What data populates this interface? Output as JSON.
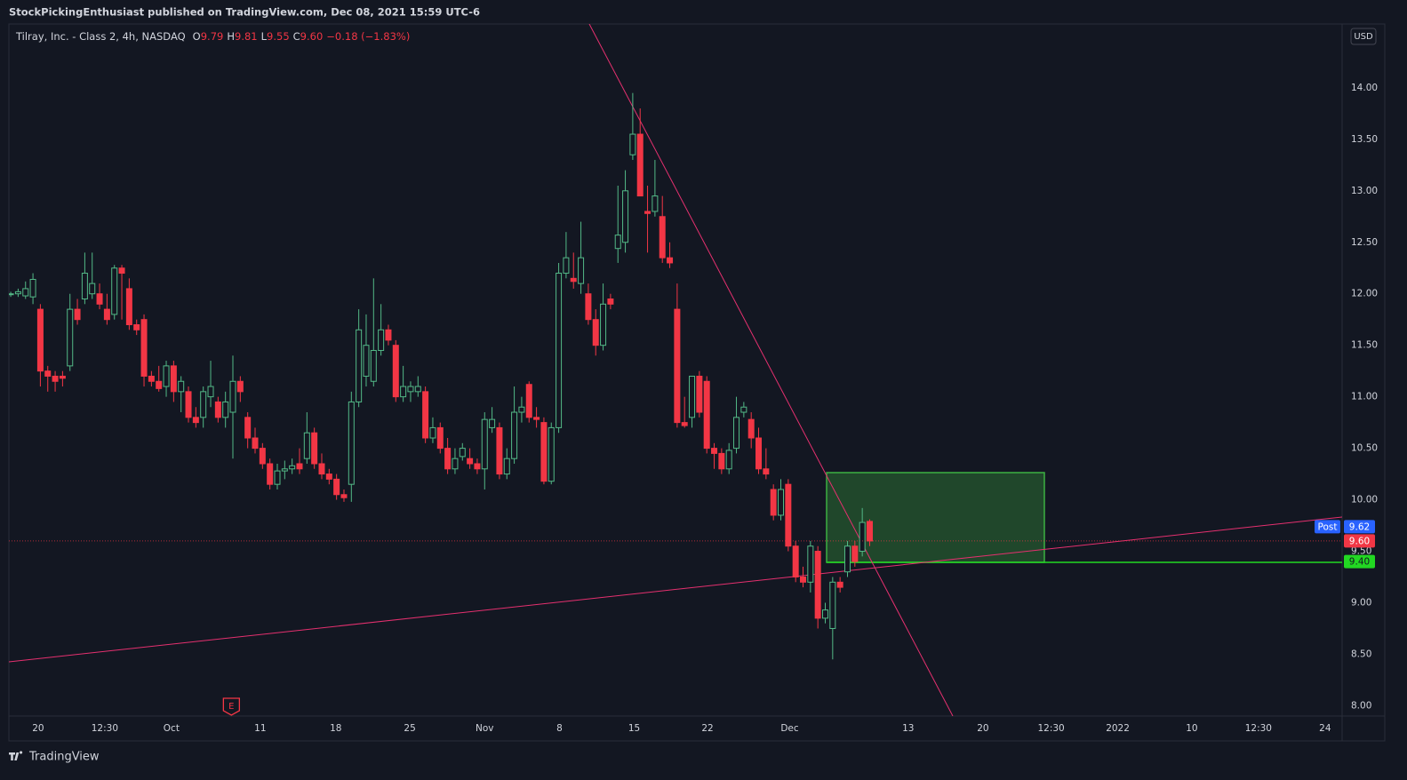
{
  "header": "StockPickingEnthusiast published on TradingView.com, Dec 08, 2021 15:59 UTC-6",
  "footer": "TradingView",
  "chart_data": {
    "type": "candlestick",
    "title": "Tilray, Inc. - Class 2, 4h, NASDAQ",
    "legend_values": [
      {
        "key": "O",
        "value": 9.79
      },
      {
        "key": "H",
        "value": 9.81
      },
      {
        "key": "L",
        "value": 9.55
      },
      {
        "key": "C",
        "value": 9.6,
        "label": "9.60"
      }
    ],
    "change": "−0.18 (−1.83%)",
    "currency": "USD",
    "up_color": "#53b987",
    "down_color": "#f23645",
    "ohlc": [
      [
        12.0,
        12.02,
        11.97,
        12.0
      ],
      [
        12.0,
        12.05,
        11.97,
        12.02
      ],
      [
        11.98,
        12.12,
        11.95,
        12.05
      ],
      [
        11.97,
        12.2,
        11.9,
        12.14
      ],
      [
        11.85,
        11.9,
        11.1,
        11.25
      ],
      [
        11.25,
        11.3,
        11.05,
        11.2
      ],
      [
        11.2,
        11.25,
        11.05,
        11.15
      ],
      [
        11.2,
        11.25,
        11.1,
        11.18
      ],
      [
        11.3,
        12.0,
        11.25,
        11.85
      ],
      [
        11.85,
        11.95,
        11.7,
        11.75
      ],
      [
        11.95,
        12.4,
        11.9,
        12.2
      ],
      [
        12.0,
        12.4,
        11.95,
        12.1
      ],
      [
        12.0,
        12.1,
        11.85,
        11.9
      ],
      [
        11.85,
        12.0,
        11.7,
        11.75
      ],
      [
        11.8,
        12.28,
        11.75,
        12.25
      ],
      [
        12.25,
        12.28,
        11.75,
        12.2
      ],
      [
        12.05,
        12.15,
        11.65,
        11.7
      ],
      [
        11.7,
        11.75,
        11.6,
        11.65
      ],
      [
        11.75,
        11.8,
        11.1,
        11.2
      ],
      [
        11.2,
        11.25,
        11.1,
        11.15
      ],
      [
        11.15,
        11.3,
        11.05,
        11.08
      ],
      [
        11.1,
        11.35,
        11.0,
        11.3
      ],
      [
        11.3,
        11.35,
        10.95,
        11.05
      ],
      [
        11.05,
        11.2,
        10.85,
        11.15
      ],
      [
        11.05,
        11.1,
        10.75,
        10.8
      ],
      [
        10.8,
        10.9,
        10.7,
        10.75
      ],
      [
        10.8,
        11.1,
        10.7,
        11.05
      ],
      [
        11.0,
        11.35,
        10.9,
        11.1
      ],
      [
        10.95,
        11.0,
        10.75,
        10.8
      ],
      [
        10.8,
        11.05,
        10.7,
        10.95
      ],
      [
        10.85,
        11.4,
        10.4,
        11.15
      ],
      [
        11.15,
        11.2,
        10.95,
        11.05
      ],
      [
        10.8,
        10.85,
        10.5,
        10.6
      ],
      [
        10.6,
        10.7,
        10.45,
        10.5
      ],
      [
        10.5,
        10.55,
        10.3,
        10.35
      ],
      [
        10.35,
        10.4,
        10.1,
        10.15
      ],
      [
        10.15,
        10.35,
        10.1,
        10.28
      ],
      [
        10.28,
        10.38,
        10.2,
        10.3
      ],
      [
        10.3,
        10.4,
        10.25,
        10.33
      ],
      [
        10.35,
        10.5,
        10.25,
        10.3
      ],
      [
        10.4,
        10.85,
        10.35,
        10.65
      ],
      [
        10.65,
        10.7,
        10.3,
        10.35
      ],
      [
        10.35,
        10.45,
        10.2,
        10.25
      ],
      [
        10.25,
        10.3,
        10.15,
        10.2
      ],
      [
        10.2,
        10.25,
        10.0,
        10.05
      ],
      [
        10.05,
        10.1,
        9.98,
        10.02
      ],
      [
        10.15,
        11.05,
        9.98,
        10.95
      ],
      [
        10.95,
        11.85,
        10.9,
        11.65
      ],
      [
        11.2,
        11.8,
        11.1,
        11.5
      ],
      [
        11.15,
        12.15,
        11.1,
        11.45
      ],
      [
        11.45,
        11.9,
        11.4,
        11.65
      ],
      [
        11.65,
        11.7,
        11.5,
        11.55
      ],
      [
        11.5,
        11.55,
        10.95,
        11.0
      ],
      [
        11.0,
        11.3,
        10.95,
        11.1
      ],
      [
        11.05,
        11.15,
        10.95,
        11.1
      ],
      [
        11.05,
        11.2,
        11.0,
        11.1
      ],
      [
        11.05,
        11.1,
        10.55,
        10.6
      ],
      [
        10.6,
        10.8,
        10.55,
        10.7
      ],
      [
        10.7,
        10.75,
        10.45,
        10.5
      ],
      [
        10.5,
        10.6,
        10.25,
        10.3
      ],
      [
        10.3,
        10.5,
        10.25,
        10.4
      ],
      [
        10.42,
        10.55,
        10.38,
        10.5
      ],
      [
        10.4,
        10.5,
        10.3,
        10.35
      ],
      [
        10.35,
        10.4,
        10.25,
        10.3
      ],
      [
        10.3,
        10.85,
        10.1,
        10.78
      ],
      [
        10.7,
        10.9,
        10.65,
        10.78
      ],
      [
        10.7,
        10.75,
        10.2,
        10.25
      ],
      [
        10.25,
        10.5,
        10.2,
        10.4
      ],
      [
        10.4,
        11.1,
        10.35,
        10.85
      ],
      [
        10.85,
        11.0,
        10.75,
        10.9
      ],
      [
        11.12,
        11.15,
        10.75,
        10.8
      ],
      [
        10.8,
        10.9,
        10.7,
        10.78
      ],
      [
        10.75,
        10.8,
        10.15,
        10.18
      ],
      [
        10.18,
        10.75,
        10.15,
        10.7
      ],
      [
        10.7,
        12.3,
        10.65,
        12.2
      ],
      [
        12.2,
        12.6,
        12.15,
        12.35
      ],
      [
        12.15,
        12.4,
        12.05,
        12.12
      ],
      [
        12.1,
        12.7,
        12.0,
        12.35
      ],
      [
        12.0,
        12.1,
        11.7,
        11.75
      ],
      [
        11.75,
        11.85,
        11.4,
        11.5
      ],
      [
        11.5,
        12.1,
        11.45,
        11.9
      ],
      [
        11.95,
        12.0,
        11.85,
        11.9
      ],
      [
        12.44,
        13.05,
        12.3,
        12.57
      ],
      [
        12.5,
        13.2,
        12.4,
        13.0
      ],
      [
        13.35,
        13.95,
        13.3,
        13.55
      ],
      [
        13.55,
        13.8,
        12.95,
        12.95
      ],
      [
        12.8,
        13.05,
        12.4,
        12.78
      ],
      [
        12.8,
        13.3,
        12.75,
        12.95
      ],
      [
        12.75,
        12.95,
        12.3,
        12.35
      ],
      [
        12.35,
        12.5,
        12.25,
        12.3
      ],
      [
        11.85,
        12.1,
        10.7,
        10.75
      ],
      [
        10.75,
        11.0,
        10.7,
        10.72
      ],
      [
        10.8,
        11.2,
        10.7,
        11.2
      ],
      [
        11.2,
        11.25,
        10.8,
        10.85
      ],
      [
        11.15,
        11.2,
        10.45,
        10.5
      ],
      [
        10.5,
        10.55,
        10.3,
        10.45
      ],
      [
        10.45,
        10.5,
        10.25,
        10.3
      ],
      [
        10.3,
        10.55,
        10.25,
        10.48
      ],
      [
        10.5,
        11.0,
        10.45,
        10.8
      ],
      [
        10.85,
        10.95,
        10.8,
        10.9
      ],
      [
        10.78,
        10.85,
        10.5,
        10.6
      ],
      [
        10.6,
        10.7,
        10.25,
        10.3
      ],
      [
        10.3,
        10.5,
        10.2,
        10.25
      ],
      [
        10.1,
        10.15,
        9.8,
        9.85
      ],
      [
        9.85,
        10.2,
        9.8,
        10.1
      ],
      [
        10.15,
        10.2,
        9.5,
        9.55
      ],
      [
        9.55,
        9.6,
        9.2,
        9.25
      ],
      [
        9.25,
        9.35,
        9.15,
        9.2
      ],
      [
        9.2,
        9.6,
        9.1,
        9.55
      ],
      [
        9.5,
        9.55,
        8.75,
        8.85
      ],
      [
        8.85,
        9.0,
        8.8,
        8.93
      ],
      [
        8.75,
        9.25,
        8.45,
        9.2
      ],
      [
        9.2,
        9.25,
        9.1,
        9.15
      ],
      [
        9.3,
        9.6,
        9.25,
        9.55
      ],
      [
        9.55,
        9.6,
        9.35,
        9.4
      ],
      [
        9.5,
        9.92,
        9.45,
        9.78
      ],
      [
        9.79,
        9.81,
        9.55,
        9.6
      ]
    ],
    "xlim": [
      -0.25,
      179.8
    ],
    "xticks": [
      {
        "value": 3.7,
        "label": "20"
      },
      {
        "value": 12.7,
        "label": "12:30"
      },
      {
        "value": 21.7,
        "label": "Oct"
      },
      {
        "value": 33.7,
        "label": "11"
      },
      {
        "value": 43.9,
        "label": "18"
      },
      {
        "value": 53.9,
        "label": "25"
      },
      {
        "value": 64.0,
        "label": "Nov"
      },
      {
        "value": 74.1,
        "label": "8"
      },
      {
        "value": 84.2,
        "label": "15"
      },
      {
        "value": 94.1,
        "label": "22"
      },
      {
        "value": 105.2,
        "label": "Dec"
      },
      {
        "value": 121.2,
        "label": "13"
      },
      {
        "value": 131.3,
        "label": "20"
      },
      {
        "value": 140.5,
        "label": "12:30"
      },
      {
        "value": 149.5,
        "label": "2022"
      },
      {
        "value": 159.5,
        "label": "10"
      },
      {
        "value": 168.5,
        "label": "12:30"
      },
      {
        "value": 177.5,
        "label": "24"
      }
    ],
    "ylim": [
      7.9,
      14.62
    ],
    "yticks": [
      {
        "value": 8,
        "label": "8.00"
      },
      {
        "value": 8.5,
        "label": "8.50"
      },
      {
        "value": 9,
        "label": "9.00"
      },
      {
        "value": 9.5,
        "label": "9.50"
      },
      {
        "value": 10,
        "label": "10.00"
      },
      {
        "value": 10.5,
        "label": "10.50"
      },
      {
        "value": 11,
        "label": "11.00"
      },
      {
        "value": 11.5,
        "label": "11.50"
      },
      {
        "value": 12,
        "label": "12.00"
      },
      {
        "value": 12.5,
        "label": "12.50"
      },
      {
        "value": 13,
        "label": "13.00"
      },
      {
        "value": 13.5,
        "label": "13.50"
      },
      {
        "value": 14,
        "label": "14.00"
      }
    ],
    "price_labels": [
      {
        "name": "Post",
        "value": 9.62,
        "color": "#2962ff"
      },
      {
        "value": 9.6,
        "label": "9.60",
        "color": "#f23645"
      },
      {
        "value": 9.4,
        "label": "9.40",
        "color": "#22d822"
      }
    ],
    "earnings_marker": {
      "label": "E",
      "x": 29.8
    }
  }
}
